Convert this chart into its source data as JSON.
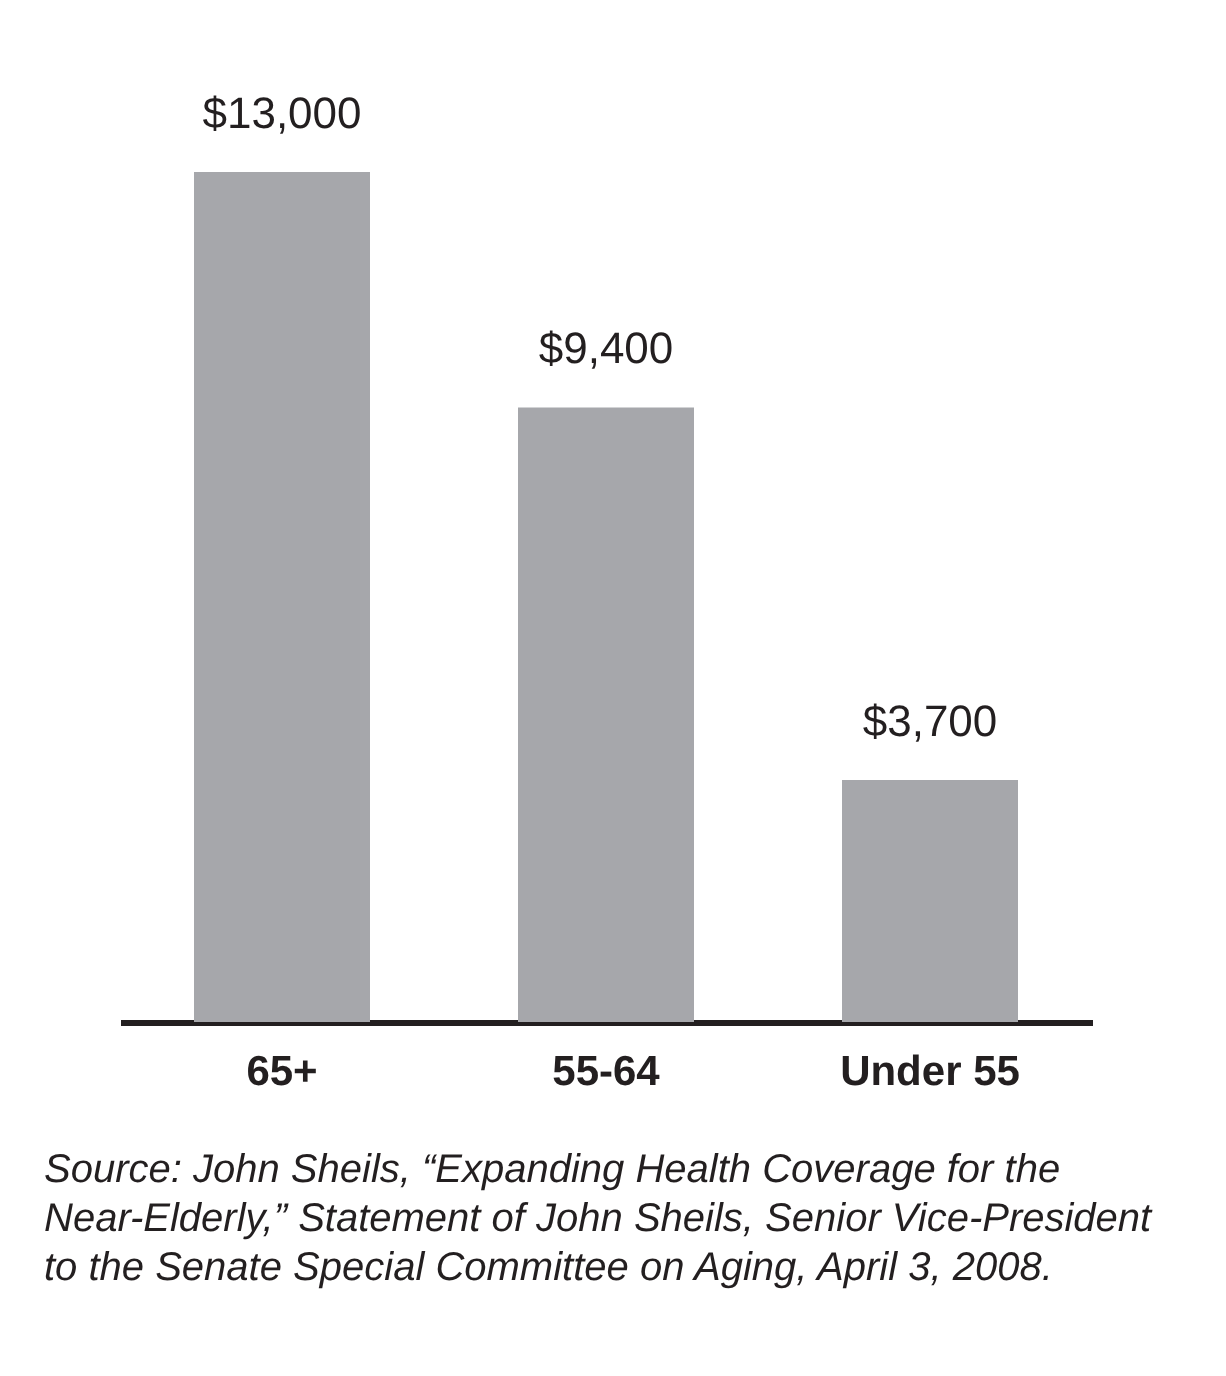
{
  "chart_data": {
    "type": "bar",
    "categories": [
      "65+",
      "55-64",
      "Under 55"
    ],
    "values": [
      13000,
      9400,
      3700
    ],
    "value_labels": [
      "$13,000",
      "$9,400",
      "$3,700"
    ],
    "color": "#a6a7ab",
    "grid": false,
    "tick_labels": "x",
    "annotations": [
      "Source: John Sheils, “Expanding Health Coverage for the Near-Elderly,” Statement of John Sheils, Senior Vice-President to the Senate Special Committee on Aging, April 3, 2008."
    ]
  }
}
